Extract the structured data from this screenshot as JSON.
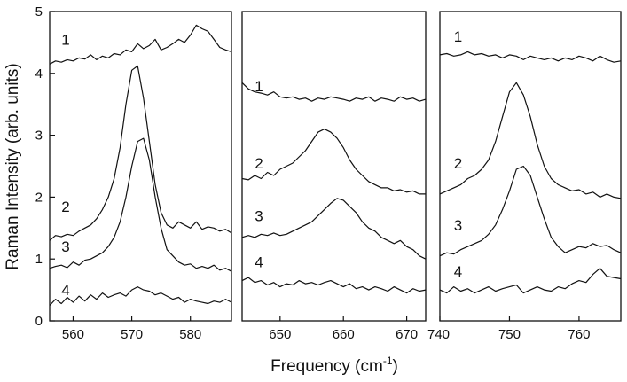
{
  "chart_data": {
    "type": "line",
    "title": "",
    "ylabel": "Raman Intensity (arb. units)",
    "xlabel": "Frequency (cm-1)",
    "xlabel_main": "Frequency (cm",
    "xlabel_sup": "-1",
    "xlabel_close": ")",
    "ylim": [
      0,
      5
    ],
    "yticks": [
      0,
      1,
      2,
      3,
      4,
      5
    ],
    "grid": false,
    "panels": [
      {
        "xlim": [
          556,
          587
        ],
        "xticks": [
          560,
          570,
          580
        ],
        "curve_labels": [
          {
            "text": "1",
            "x": 558,
            "y": 4.55
          },
          {
            "text": "2",
            "x": 558,
            "y": 1.85
          },
          {
            "text": "3",
            "x": 558,
            "y": 1.2
          },
          {
            "text": "4",
            "x": 558,
            "y": 0.5
          }
        ],
        "series": [
          {
            "label": "1",
            "x": [
              556,
              557,
              558,
              559,
              560,
              561,
              562,
              563,
              564,
              565,
              566,
              567,
              568,
              569,
              570,
              571,
              572,
              573,
              574,
              575,
              576,
              577,
              578,
              579,
              580,
              581,
              582,
              583,
              584,
              585,
              586,
              587
            ],
            "y": [
              4.15,
              4.2,
              4.18,
              4.22,
              4.2,
              4.25,
              4.23,
              4.3,
              4.22,
              4.28,
              4.25,
              4.32,
              4.3,
              4.38,
              4.35,
              4.48,
              4.4,
              4.45,
              4.55,
              4.38,
              4.42,
              4.48,
              4.55,
              4.5,
              4.62,
              4.78,
              4.72,
              4.68,
              4.55,
              4.42,
              4.38,
              4.35
            ]
          },
          {
            "label": "2",
            "x": [
              556,
              557,
              558,
              559,
              560,
              561,
              562,
              563,
              564,
              565,
              566,
              567,
              568,
              569,
              570,
              571,
              572,
              573,
              574,
              575,
              576,
              577,
              578,
              579,
              580,
              581,
              582,
              583,
              584,
              585,
              586,
              587
            ],
            "y": [
              1.3,
              1.38,
              1.36,
              1.4,
              1.38,
              1.45,
              1.5,
              1.55,
              1.65,
              1.8,
              2.0,
              2.3,
              2.8,
              3.5,
              4.05,
              4.12,
              3.6,
              2.9,
              2.2,
              1.75,
              1.55,
              1.5,
              1.6,
              1.55,
              1.5,
              1.6,
              1.48,
              1.52,
              1.5,
              1.45,
              1.48,
              1.42
            ]
          },
          {
            "label": "3",
            "x": [
              556,
              557,
              558,
              559,
              560,
              561,
              562,
              563,
              564,
              565,
              566,
              567,
              568,
              569,
              570,
              571,
              572,
              573,
              574,
              575,
              576,
              577,
              578,
              579,
              580,
              581,
              582,
              583,
              584,
              585,
              586,
              587
            ],
            "y": [
              0.85,
              0.88,
              0.9,
              0.86,
              0.95,
              0.9,
              0.98,
              1.0,
              1.05,
              1.1,
              1.2,
              1.35,
              1.6,
              2.0,
              2.5,
              2.9,
              2.95,
              2.6,
              2.0,
              1.5,
              1.15,
              1.05,
              0.95,
              0.9,
              0.92,
              0.85,
              0.88,
              0.85,
              0.9,
              0.82,
              0.85,
              0.8
            ]
          },
          {
            "label": "4",
            "x": [
              556,
              557,
              558,
              559,
              560,
              561,
              562,
              563,
              564,
              565,
              566,
              567,
              568,
              569,
              570,
              571,
              572,
              573,
              574,
              575,
              576,
              577,
              578,
              579,
              580,
              581,
              582,
              583,
              584,
              585,
              586,
              587
            ],
            "y": [
              0.25,
              0.35,
              0.28,
              0.38,
              0.3,
              0.4,
              0.32,
              0.42,
              0.35,
              0.45,
              0.38,
              0.42,
              0.45,
              0.4,
              0.5,
              0.55,
              0.5,
              0.48,
              0.42,
              0.45,
              0.4,
              0.35,
              0.38,
              0.3,
              0.35,
              0.32,
              0.3,
              0.28,
              0.32,
              0.3,
              0.35,
              0.3
            ]
          }
        ]
      },
      {
        "xlim": [
          644,
          673
        ],
        "xticks": [
          650,
          660,
          670
        ],
        "curve_labels": [
          {
            "text": "1",
            "x": 646,
            "y": 3.8
          },
          {
            "text": "2",
            "x": 646,
            "y": 2.55
          },
          {
            "text": "3",
            "x": 646,
            "y": 1.7
          },
          {
            "text": "4",
            "x": 646,
            "y": 0.95
          }
        ],
        "series": [
          {
            "label": "1",
            "x": [
              644,
              645,
              646,
              647,
              648,
              649,
              650,
              651,
              652,
              653,
              654,
              655,
              656,
              657,
              658,
              659,
              660,
              661,
              662,
              663,
              664,
              665,
              666,
              667,
              668,
              669,
              670,
              671,
              672,
              673
            ],
            "y": [
              3.85,
              3.75,
              3.7,
              3.68,
              3.65,
              3.7,
              3.62,
              3.6,
              3.62,
              3.58,
              3.6,
              3.55,
              3.6,
              3.58,
              3.62,
              3.6,
              3.58,
              3.55,
              3.6,
              3.58,
              3.62,
              3.55,
              3.6,
              3.58,
              3.55,
              3.62,
              3.58,
              3.6,
              3.55,
              3.58
            ]
          },
          {
            "label": "2",
            "x": [
              644,
              645,
              646,
              647,
              648,
              649,
              650,
              651,
              652,
              653,
              654,
              655,
              656,
              657,
              658,
              659,
              660,
              661,
              662,
              663,
              664,
              665,
              666,
              667,
              668,
              669,
              670,
              671,
              672,
              673
            ],
            "y": [
              2.3,
              2.28,
              2.35,
              2.3,
              2.4,
              2.35,
              2.45,
              2.5,
              2.55,
              2.65,
              2.75,
              2.9,
              3.05,
              3.1,
              3.05,
              2.95,
              2.8,
              2.6,
              2.45,
              2.35,
              2.25,
              2.2,
              2.15,
              2.15,
              2.1,
              2.12,
              2.08,
              2.1,
              2.05,
              2.05
            ]
          },
          {
            "label": "3",
            "x": [
              644,
              645,
              646,
              647,
              648,
              649,
              650,
              651,
              652,
              653,
              654,
              655,
              656,
              657,
              658,
              659,
              660,
              661,
              662,
              663,
              664,
              665,
              666,
              667,
              668,
              669,
              670,
              671,
              672,
              673
            ],
            "y": [
              1.35,
              1.38,
              1.35,
              1.4,
              1.38,
              1.42,
              1.38,
              1.4,
              1.45,
              1.5,
              1.55,
              1.6,
              1.7,
              1.8,
              1.9,
              1.98,
              1.95,
              1.85,
              1.75,
              1.6,
              1.5,
              1.45,
              1.35,
              1.3,
              1.25,
              1.3,
              1.2,
              1.15,
              1.05,
              1.0
            ]
          },
          {
            "label": "4",
            "x": [
              644,
              645,
              646,
              647,
              648,
              649,
              650,
              651,
              652,
              653,
              654,
              655,
              656,
              657,
              658,
              659,
              660,
              661,
              662,
              663,
              664,
              665,
              666,
              667,
              668,
              669,
              670,
              671,
              672,
              673
            ],
            "y": [
              0.65,
              0.7,
              0.62,
              0.65,
              0.58,
              0.62,
              0.55,
              0.6,
              0.58,
              0.65,
              0.6,
              0.62,
              0.58,
              0.62,
              0.65,
              0.6,
              0.55,
              0.6,
              0.52,
              0.55,
              0.5,
              0.55,
              0.52,
              0.48,
              0.55,
              0.5,
              0.45,
              0.52,
              0.48,
              0.5
            ]
          }
        ]
      },
      {
        "xlim": [
          740,
          766
        ],
        "xticks": [
          740,
          750,
          760
        ],
        "curve_labels": [
          {
            "text": "1",
            "x": 742,
            "y": 4.6
          },
          {
            "text": "2",
            "x": 742,
            "y": 2.55
          },
          {
            "text": "3",
            "x": 742,
            "y": 1.55
          },
          {
            "text": "4",
            "x": 742,
            "y": 0.8
          }
        ],
        "series": [
          {
            "label": "1",
            "x": [
              740,
              741,
              742,
              743,
              744,
              745,
              746,
              747,
              748,
              749,
              750,
              751,
              752,
              753,
              754,
              755,
              756,
              757,
              758,
              759,
              760,
              761,
              762,
              763,
              764,
              765,
              766
            ],
            "y": [
              4.3,
              4.32,
              4.28,
              4.3,
              4.35,
              4.3,
              4.32,
              4.28,
              4.3,
              4.25,
              4.3,
              4.28,
              4.22,
              4.28,
              4.25,
              4.22,
              4.25,
              4.2,
              4.25,
              4.22,
              4.28,
              4.25,
              4.2,
              4.28,
              4.22,
              4.18,
              4.2
            ]
          },
          {
            "label": "2",
            "x": [
              740,
              741,
              742,
              743,
              744,
              745,
              746,
              747,
              748,
              749,
              750,
              751,
              752,
              753,
              754,
              755,
              756,
              757,
              758,
              759,
              760,
              761,
              762,
              763,
              764,
              765,
              766
            ],
            "y": [
              2.05,
              2.1,
              2.15,
              2.2,
              2.3,
              2.35,
              2.45,
              2.6,
              2.9,
              3.3,
              3.7,
              3.85,
              3.65,
              3.3,
              2.85,
              2.5,
              2.3,
              2.2,
              2.15,
              2.1,
              2.12,
              2.05,
              2.08,
              2.0,
              2.05,
              2.0,
              1.98
            ]
          },
          {
            "label": "3",
            "x": [
              740,
              741,
              742,
              743,
              744,
              745,
              746,
              747,
              748,
              749,
              750,
              751,
              752,
              753,
              754,
              755,
              756,
              757,
              758,
              759,
              760,
              761,
              762,
              763,
              764,
              765,
              766
            ],
            "y": [
              1.05,
              1.1,
              1.08,
              1.15,
              1.2,
              1.25,
              1.3,
              1.4,
              1.55,
              1.8,
              2.1,
              2.45,
              2.5,
              2.35,
              2.0,
              1.65,
              1.35,
              1.2,
              1.1,
              1.15,
              1.2,
              1.18,
              1.25,
              1.2,
              1.22,
              1.15,
              1.1
            ]
          },
          {
            "label": "4",
            "x": [
              740,
              741,
              742,
              743,
              744,
              745,
              746,
              747,
              748,
              749,
              750,
              751,
              752,
              753,
              754,
              755,
              756,
              757,
              758,
              759,
              760,
              761,
              762,
              763,
              764,
              765,
              766
            ],
            "y": [
              0.5,
              0.45,
              0.55,
              0.48,
              0.52,
              0.45,
              0.5,
              0.55,
              0.48,
              0.52,
              0.55,
              0.58,
              0.45,
              0.5,
              0.55,
              0.5,
              0.48,
              0.55,
              0.52,
              0.6,
              0.65,
              0.62,
              0.75,
              0.85,
              0.72,
              0.7,
              0.68
            ]
          }
        ]
      }
    ]
  }
}
